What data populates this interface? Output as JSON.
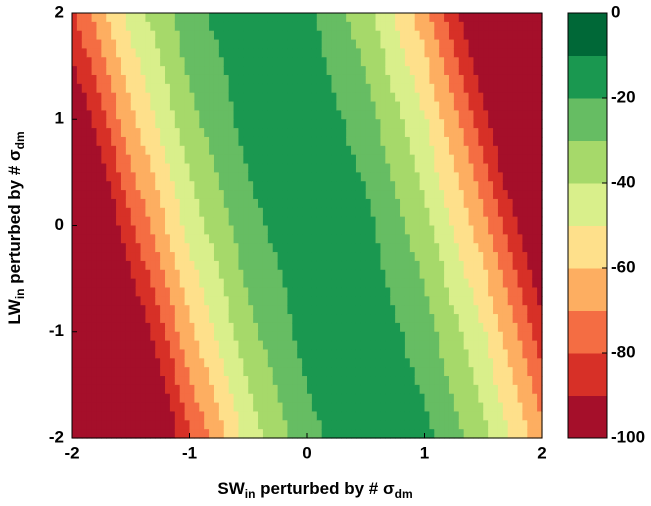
{
  "chart_data": {
    "type": "contour",
    "xlabel": [
      "SW",
      "in",
      " perturbed by # σ",
      "dm"
    ],
    "ylabel": [
      "LW",
      "in",
      " perturbed by # σ",
      "dm"
    ],
    "x": [
      -2,
      -1.5,
      -1,
      -0.5,
      0,
      0.5,
      1,
      1.5,
      2
    ],
    "y": [
      2,
      1,
      0,
      -1,
      -2
    ],
    "z": [
      [
        -81,
        -46,
        -23,
        -12,
        -17,
        -36,
        -66,
        -108,
        -162
      ],
      [
        -103,
        -62,
        -33,
        -16,
        -12,
        -25,
        -49,
        -86,
        -134
      ],
      [
        -128,
        -81,
        -46,
        -23,
        -12,
        -17,
        -36,
        -66,
        -108
      ],
      [
        -156,
        -103,
        -62,
        -33,
        -16,
        -12,
        -25,
        -49,
        -86
      ],
      [
        -187,
        -128,
        -81,
        -46,
        -23,
        -12,
        -17,
        -36,
        -66
      ]
    ],
    "levels": [
      -100,
      -90,
      -80,
      -70,
      -60,
      -50,
      -40,
      -30,
      -20,
      -10,
      0
    ],
    "colors": [
      "#a50f2a",
      "#d73027",
      "#f46d43",
      "#fdae61",
      "#fee08b",
      "#d9ef8b",
      "#a6d96a",
      "#66bd63",
      "#1a9850",
      "#006837"
    ],
    "xlim": [
      -2,
      2
    ],
    "ylim": [
      -2,
      2
    ],
    "xticks": [
      -2,
      -1,
      0,
      1,
      2
    ],
    "yticks": [
      -2,
      -1,
      0,
      1,
      2
    ],
    "colorbar_ticks": [
      -100,
      -80,
      -60,
      -40,
      -20,
      0
    ]
  }
}
